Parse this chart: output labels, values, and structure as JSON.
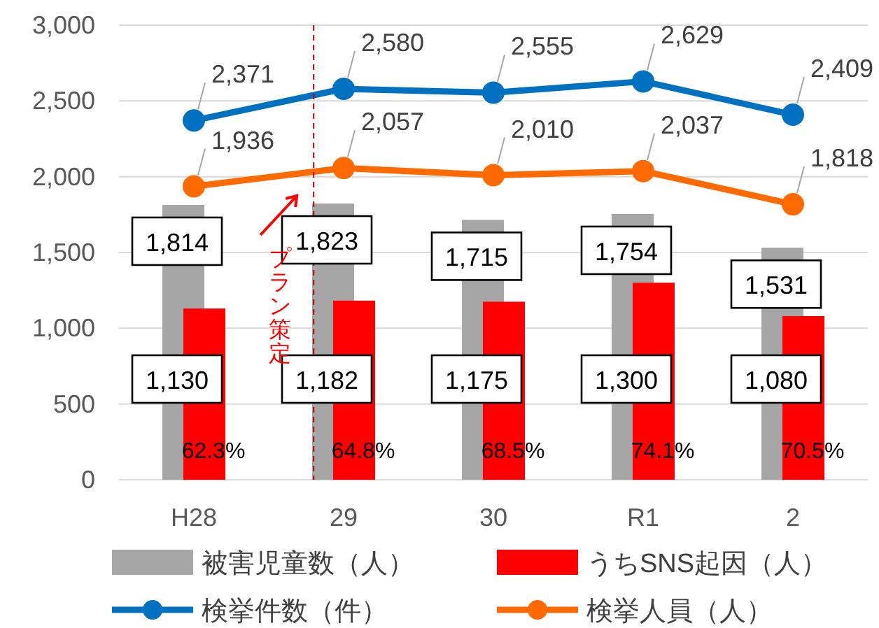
{
  "chart_data": {
    "type": "bar",
    "categories": [
      "H28",
      "29",
      "30",
      "R1",
      "2"
    ],
    "series": [
      {
        "name": "被害児童数（人）",
        "color": "#a6a6a6",
        "values": [
          1814,
          1823,
          1715,
          1754,
          1531
        ],
        "value_labels": [
          "1,814",
          "1,823",
          "1,715",
          "1,754",
          "1,531"
        ]
      },
      {
        "name": "うちSNS起因（人）",
        "color": "#ff0000",
        "values": [
          1130,
          1182,
          1175,
          1300,
          1080
        ],
        "value_labels": [
          "1,130",
          "1,182",
          "1,175",
          "1,300",
          "1,080"
        ]
      },
      {
        "name": "検挙件数（件）",
        "type": "line",
        "color": "#0070c0",
        "values": [
          2371,
          2580,
          2555,
          2629,
          2409
        ],
        "value_labels": [
          "2,371",
          "2,580",
          "2,555",
          "2,629",
          "2,409"
        ]
      },
      {
        "name": "検挙人員（人）",
        "type": "line",
        "color": "#ff6a00",
        "values": [
          1936,
          2057,
          2010,
          2037,
          1818
        ],
        "value_labels": [
          "1,936",
          "2,057",
          "2,010",
          "2,037",
          "1,818"
        ]
      }
    ],
    "ylim": [
      0,
      3000
    ],
    "yticks": [
      0,
      500,
      {
        "value": 1000,
        "label": "1,000"
      },
      {
        "value": 1500,
        "label": "1,500"
      },
      {
        "value": 2000,
        "label": "2,000"
      },
      {
        "value": 2500,
        "label": "2,500"
      },
      {
        "value": 3000,
        "label": "3,000"
      }
    ],
    "grid": "y",
    "legend": "bottom",
    "marker": "circle",
    "annotations": [
      "62.3%",
      "64.8%",
      "68.5%",
      "74.1%",
      "70.5%",
      "プラン策定"
    ]
  }
}
